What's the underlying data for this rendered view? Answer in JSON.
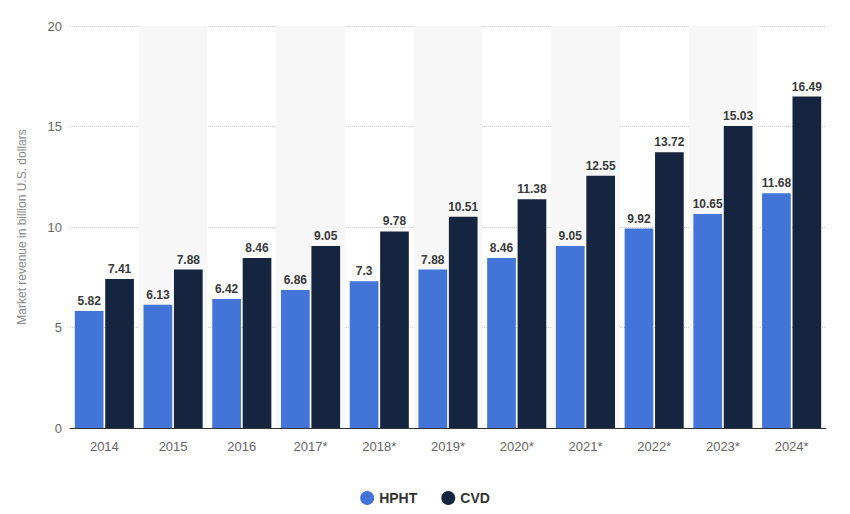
{
  "chart_data": {
    "type": "bar",
    "y_label": "Market revenue in billion U.S. dollars",
    "categories": [
      "2014",
      "2015",
      "2016",
      "2017*",
      "2018*",
      "2019*",
      "2020*",
      "2021*",
      "2022*",
      "2023*",
      "2024*"
    ],
    "series": [
      {
        "name": "HPHT",
        "color": "#4375d8",
        "values": [
          5.82,
          6.13,
          6.42,
          6.86,
          7.3,
          7.88,
          8.46,
          9.05,
          9.92,
          10.65,
          11.68
        ]
      },
      {
        "name": "CVD",
        "color": "#16253f",
        "values": [
          7.41,
          7.88,
          8.46,
          9.05,
          9.78,
          10.51,
          11.38,
          12.55,
          13.72,
          15.03,
          16.49
        ]
      }
    ],
    "ylim": [
      0,
      20
    ],
    "yticks": [
      0,
      5,
      10,
      15,
      20
    ],
    "grid": true,
    "legend": "bottom",
    "data_labels": true
  }
}
